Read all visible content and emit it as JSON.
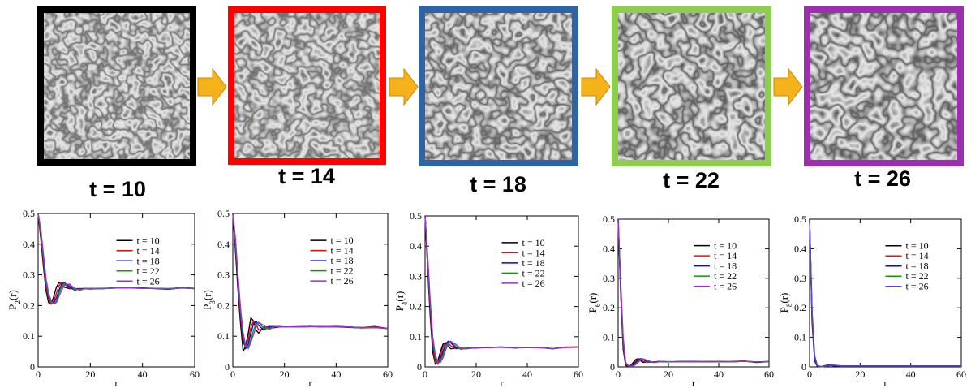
{
  "snapshots": [
    {
      "label": "t = 10",
      "border": "#000000"
    },
    {
      "label": "t = 14",
      "border": "#ff0000"
    },
    {
      "label": "t = 18",
      "border": "#2e63a6"
    },
    {
      "label": "t = 22",
      "border": "#8ccf4d"
    },
    {
      "label": "t = 26",
      "border": "#9b2fae"
    }
  ],
  "chart_data": [
    {
      "type": "line",
      "ylabel": [
        "P",
        "2",
        "(r)"
      ],
      "xlabel": "r",
      "x": [
        0,
        1,
        2,
        3,
        4,
        5,
        6,
        7,
        8,
        9,
        10,
        12,
        14,
        16,
        18,
        20,
        25,
        30,
        35,
        40,
        45,
        50,
        55,
        60
      ],
      "xlim": [
        0,
        60
      ],
      "xticks": [
        0,
        20,
        40,
        60
      ],
      "ylim": [
        0,
        0.5
      ],
      "yticks": [
        0,
        0.1,
        0.2,
        0.3,
        0.4,
        0.5
      ],
      "legend": "upper right",
      "series": [
        {
          "name": "t = 10",
          "color": "#000000",
          "values": [
            0.5,
            0.42,
            0.33,
            0.25,
            0.21,
            0.205,
            0.23,
            0.26,
            0.275,
            0.27,
            0.26,
            0.255,
            0.255,
            0.255,
            0.255,
            0.255,
            0.255,
            0.258,
            0.258,
            0.257,
            0.256,
            0.255,
            0.258,
            0.255
          ]
        },
        {
          "name": "t = 14",
          "color": "#ff0000",
          "values": [
            0.5,
            0.43,
            0.34,
            0.26,
            0.22,
            0.205,
            0.215,
            0.24,
            0.265,
            0.275,
            0.27,
            0.258,
            0.252,
            0.255,
            0.255,
            0.255,
            0.256,
            0.257,
            0.258,
            0.256,
            0.256,
            0.254,
            0.257,
            0.256
          ]
        },
        {
          "name": "t = 18",
          "color": "#0000ff",
          "values": [
            0.5,
            0.44,
            0.35,
            0.27,
            0.225,
            0.21,
            0.21,
            0.225,
            0.25,
            0.27,
            0.275,
            0.262,
            0.25,
            0.254,
            0.256,
            0.254,
            0.256,
            0.257,
            0.257,
            0.257,
            0.255,
            0.253,
            0.258,
            0.256
          ]
        },
        {
          "name": "t = 22",
          "color": "#00a000",
          "values": [
            0.5,
            0.44,
            0.36,
            0.28,
            0.23,
            0.21,
            0.205,
            0.215,
            0.24,
            0.26,
            0.272,
            0.268,
            0.252,
            0.252,
            0.256,
            0.255,
            0.255,
            0.258,
            0.257,
            0.256,
            0.256,
            0.254,
            0.258,
            0.256
          ]
        },
        {
          "name": "t = 26",
          "color": "#9b30d0",
          "values": [
            0.5,
            0.45,
            0.37,
            0.29,
            0.24,
            0.215,
            0.205,
            0.21,
            0.23,
            0.25,
            0.265,
            0.27,
            0.256,
            0.25,
            0.255,
            0.256,
            0.255,
            0.257,
            0.258,
            0.256,
            0.256,
            0.255,
            0.257,
            0.255
          ]
        }
      ]
    },
    {
      "type": "line",
      "ylabel": [
        "P",
        "3",
        "(r)"
      ],
      "xlabel": "r",
      "x": [
        0,
        1,
        2,
        3,
        4,
        5,
        6,
        7,
        8,
        9,
        10,
        12,
        14,
        16,
        18,
        20,
        25,
        30,
        35,
        40,
        45,
        50,
        55,
        60
      ],
      "xlim": [
        0,
        60
      ],
      "xticks": [
        0,
        20,
        40,
        60
      ],
      "ylim": [
        0,
        0.5
      ],
      "yticks": [
        0,
        0.1,
        0.2,
        0.3,
        0.4,
        0.5
      ],
      "legend": "upper right",
      "series": [
        {
          "name": "t = 10",
          "color": "#000000",
          "values": [
            0.5,
            0.38,
            0.25,
            0.14,
            0.05,
            0.07,
            0.11,
            0.16,
            0.15,
            0.12,
            0.11,
            0.13,
            0.13,
            0.128,
            0.13,
            0.13,
            0.13,
            0.132,
            0.13,
            0.132,
            0.13,
            0.128,
            0.13,
            0.125
          ]
        },
        {
          "name": "t = 14",
          "color": "#ff0000",
          "values": [
            0.5,
            0.39,
            0.27,
            0.16,
            0.08,
            0.065,
            0.09,
            0.13,
            0.15,
            0.14,
            0.12,
            0.125,
            0.132,
            0.13,
            0.13,
            0.13,
            0.13,
            0.132,
            0.131,
            0.131,
            0.13,
            0.128,
            0.132,
            0.125
          ]
        },
        {
          "name": "t = 18",
          "color": "#0000ff",
          "values": [
            0.5,
            0.4,
            0.28,
            0.17,
            0.09,
            0.06,
            0.075,
            0.11,
            0.14,
            0.15,
            0.135,
            0.12,
            0.13,
            0.132,
            0.13,
            0.13,
            0.131,
            0.131,
            0.131,
            0.13,
            0.129,
            0.127,
            0.13,
            0.125
          ]
        },
        {
          "name": "t = 22",
          "color": "#00a000",
          "values": [
            0.5,
            0.41,
            0.29,
            0.18,
            0.1,
            0.065,
            0.065,
            0.09,
            0.12,
            0.14,
            0.145,
            0.125,
            0.126,
            0.132,
            0.13,
            0.13,
            0.13,
            0.132,
            0.13,
            0.131,
            0.13,
            0.128,
            0.129,
            0.125
          ]
        },
        {
          "name": "t = 26",
          "color": "#9b30d0",
          "values": [
            0.5,
            0.42,
            0.3,
            0.19,
            0.11,
            0.07,
            0.06,
            0.08,
            0.105,
            0.13,
            0.145,
            0.135,
            0.122,
            0.13,
            0.132,
            0.13,
            0.13,
            0.131,
            0.131,
            0.13,
            0.13,
            0.127,
            0.128,
            0.125
          ]
        }
      ]
    },
    {
      "type": "line",
      "ylabel": [
        "P",
        "4",
        "(r)"
      ],
      "xlabel": "r",
      "x": [
        0,
        1,
        2,
        3,
        4,
        5,
        6,
        7,
        8,
        9,
        10,
        12,
        14,
        16,
        18,
        20,
        25,
        30,
        35,
        40,
        45,
        50,
        55,
        60
      ],
      "xlim": [
        0,
        60
      ],
      "xticks": [
        0,
        20,
        40,
        60
      ],
      "ylim": [
        0,
        0.5
      ],
      "yticks": [
        0,
        0.1,
        0.2,
        0.3,
        0.4,
        0.5
      ],
      "legend": "upper right",
      "series": [
        {
          "name": "t = 10",
          "color": "#000000",
          "values": [
            0.5,
            0.33,
            0.17,
            0.05,
            0.01,
            0.02,
            0.05,
            0.075,
            0.08,
            0.07,
            0.06,
            0.062,
            0.062,
            0.06,
            0.062,
            0.063,
            0.064,
            0.065,
            0.063,
            0.065,
            0.065,
            0.06,
            0.065,
            0.065
          ]
        },
        {
          "name": "t = 14",
          "color": "#ff0000",
          "values": [
            0.5,
            0.34,
            0.19,
            0.07,
            0.015,
            0.015,
            0.035,
            0.065,
            0.08,
            0.08,
            0.07,
            0.06,
            0.062,
            0.062,
            0.062,
            0.063,
            0.064,
            0.066,
            0.063,
            0.065,
            0.064,
            0.06,
            0.066,
            0.066
          ]
        },
        {
          "name": "t = 18",
          "color": "#0000ff",
          "values": [
            0.5,
            0.35,
            0.2,
            0.08,
            0.025,
            0.01,
            0.025,
            0.05,
            0.075,
            0.085,
            0.08,
            0.063,
            0.06,
            0.062,
            0.063,
            0.063,
            0.065,
            0.066,
            0.063,
            0.064,
            0.064,
            0.061,
            0.065,
            0.066
          ]
        },
        {
          "name": "t = 22",
          "color": "#00a000",
          "values": [
            0.5,
            0.36,
            0.21,
            0.09,
            0.03,
            0.012,
            0.02,
            0.04,
            0.065,
            0.08,
            0.085,
            0.068,
            0.058,
            0.062,
            0.063,
            0.064,
            0.065,
            0.065,
            0.064,
            0.064,
            0.064,
            0.06,
            0.065,
            0.066
          ]
        },
        {
          "name": "t = 26",
          "color": "#9b30d0",
          "values": [
            0.5,
            0.37,
            0.22,
            0.1,
            0.04,
            0.015,
            0.015,
            0.03,
            0.055,
            0.075,
            0.085,
            0.075,
            0.06,
            0.06,
            0.063,
            0.064,
            0.065,
            0.065,
            0.064,
            0.065,
            0.063,
            0.061,
            0.064,
            0.065
          ]
        }
      ]
    },
    {
      "type": "line",
      "ylabel": [
        "P",
        "6",
        "(r)"
      ],
      "xlabel": "r",
      "x": [
        0,
        1,
        2,
        3,
        4,
        5,
        6,
        7,
        8,
        9,
        10,
        12,
        14,
        16,
        18,
        20,
        25,
        30,
        35,
        40,
        45,
        50,
        55,
        60
      ],
      "xlim": [
        0,
        60
      ],
      "xticks": [
        0,
        20,
        40,
        60
      ],
      "ylim": [
        0,
        0.5
      ],
      "yticks": [
        0,
        0.1,
        0.2,
        0.3,
        0.4,
        0.5
      ],
      "legend": "upper right",
      "series": [
        {
          "name": "t = 10",
          "color": "#000000",
          "values": [
            0.5,
            0.25,
            0.06,
            0.005,
            0.002,
            0.005,
            0.015,
            0.025,
            0.028,
            0.02,
            0.015,
            0.018,
            0.016,
            0.018,
            0.017,
            0.017,
            0.018,
            0.018,
            0.017,
            0.018,
            0.018,
            0.02,
            0.015,
            0.018
          ]
        },
        {
          "name": "t = 14",
          "color": "#ff0000",
          "values": [
            0.5,
            0.26,
            0.07,
            0.008,
            0.002,
            0.003,
            0.01,
            0.02,
            0.028,
            0.026,
            0.018,
            0.016,
            0.017,
            0.018,
            0.017,
            0.017,
            0.018,
            0.018,
            0.017,
            0.018,
            0.017,
            0.02,
            0.016,
            0.018
          ]
        },
        {
          "name": "t = 18",
          "color": "#0000ff",
          "values": [
            0.5,
            0.27,
            0.08,
            0.01,
            0.003,
            0.002,
            0.006,
            0.015,
            0.024,
            0.028,
            0.024,
            0.016,
            0.016,
            0.018,
            0.018,
            0.017,
            0.018,
            0.018,
            0.018,
            0.018,
            0.017,
            0.019,
            0.016,
            0.018
          ]
        },
        {
          "name": "t = 22",
          "color": "#00a000",
          "values": [
            0.5,
            0.28,
            0.09,
            0.012,
            0.004,
            0.002,
            0.004,
            0.01,
            0.02,
            0.026,
            0.027,
            0.018,
            0.015,
            0.017,
            0.018,
            0.017,
            0.018,
            0.017,
            0.018,
            0.018,
            0.017,
            0.019,
            0.017,
            0.018
          ]
        },
        {
          "name": "t = 26",
          "color": "#9b30d0",
          "values": [
            0.5,
            0.29,
            0.1,
            0.015,
            0.005,
            0.002,
            0.003,
            0.008,
            0.016,
            0.023,
            0.027,
            0.021,
            0.015,
            0.017,
            0.018,
            0.018,
            0.017,
            0.017,
            0.018,
            0.018,
            0.017,
            0.019,
            0.017,
            0.018
          ]
        }
      ]
    },
    {
      "type": "line",
      "ylabel": [
        "P",
        "8",
        "(r)"
      ],
      "xlabel": "r",
      "x": [
        0,
        1,
        2,
        3,
        4,
        5,
        6,
        7,
        8,
        9,
        10,
        12,
        14,
        16,
        18,
        20,
        25,
        30,
        35,
        40,
        45,
        50,
        55,
        60
      ],
      "xlim": [
        0,
        60
      ],
      "xticks": [
        0,
        20,
        40,
        60
      ],
      "ylim": [
        0,
        0.5
      ],
      "yticks": [
        0,
        0.1,
        0.2,
        0.3,
        0.4,
        0.5
      ],
      "legend": "upper right",
      "series": [
        {
          "name": "t = 10",
          "color": "#000000",
          "values": [
            0.5,
            0.15,
            0.02,
            0.002,
            0.001,
            0.002,
            0.004,
            0.006,
            0.006,
            0.004,
            0.003,
            0.004,
            0.003,
            0.003,
            0.003,
            0.003,
            0.003,
            0.003,
            0.003,
            0.003,
            0.003,
            0.003,
            0.003,
            0.003
          ]
        },
        {
          "name": "t = 14",
          "color": "#ff0000",
          "values": [
            0.5,
            0.16,
            0.025,
            0.003,
            0.001,
            0.001,
            0.003,
            0.005,
            0.006,
            0.005,
            0.004,
            0.003,
            0.003,
            0.003,
            0.003,
            0.003,
            0.003,
            0.003,
            0.003,
            0.003,
            0.003,
            0.003,
            0.003,
            0.003
          ]
        },
        {
          "name": "t = 18",
          "color": "#0000ff",
          "values": [
            0.5,
            0.17,
            0.03,
            0.004,
            0.001,
            0.001,
            0.002,
            0.004,
            0.006,
            0.006,
            0.004,
            0.003,
            0.003,
            0.003,
            0.003,
            0.003,
            0.003,
            0.003,
            0.003,
            0.003,
            0.003,
            0.003,
            0.003,
            0.003
          ]
        },
        {
          "name": "t = 22",
          "color": "#00a000",
          "values": [
            0.5,
            0.18,
            0.035,
            0.005,
            0.002,
            0.001,
            0.002,
            0.003,
            0.005,
            0.006,
            0.005,
            0.003,
            0.003,
            0.003,
            0.003,
            0.003,
            0.003,
            0.003,
            0.003,
            0.003,
            0.003,
            0.003,
            0.003,
            0.003
          ]
        },
        {
          "name": "t = 26",
          "color": "#5a40e0",
          "values": [
            0.5,
            0.19,
            0.04,
            0.006,
            0.002,
            0.001,
            0.002,
            0.003,
            0.004,
            0.006,
            0.006,
            0.004,
            0.003,
            0.003,
            0.003,
            0.003,
            0.003,
            0.003,
            0.003,
            0.003,
            0.003,
            0.003,
            0.003,
            0.003
          ]
        }
      ]
    }
  ]
}
